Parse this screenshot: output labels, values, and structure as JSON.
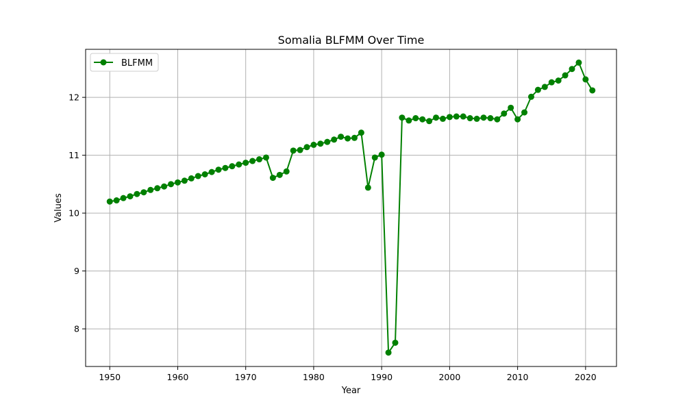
{
  "chart_data": {
    "type": "line",
    "title": "Somalia BLFMM Over Time",
    "xlabel": "Year",
    "ylabel": "Values",
    "xlim": [
      1946.45,
      2024.55
    ],
    "ylim": [
      7.35,
      12.83
    ],
    "xticks": [
      1950,
      1960,
      1970,
      1980,
      1990,
      2000,
      2010,
      2020
    ],
    "yticks": [
      8,
      9,
      10,
      11,
      12
    ],
    "grid": true,
    "legend_position": "upper-left",
    "series": [
      {
        "name": "BLFMM",
        "color": "#008000",
        "marker": "circle",
        "x": [
          1950,
          1951,
          1952,
          1953,
          1954,
          1955,
          1956,
          1957,
          1958,
          1959,
          1960,
          1961,
          1962,
          1963,
          1964,
          1965,
          1966,
          1967,
          1968,
          1969,
          1970,
          1971,
          1972,
          1973,
          1974,
          1975,
          1976,
          1977,
          1978,
          1979,
          1980,
          1981,
          1982,
          1983,
          1984,
          1985,
          1986,
          1987,
          1988,
          1989,
          1990,
          1991,
          1992,
          1993,
          1994,
          1995,
          1996,
          1997,
          1998,
          1999,
          2000,
          2001,
          2002,
          2003,
          2004,
          2005,
          2006,
          2007,
          2008,
          2009,
          2010,
          2011,
          2012,
          2013,
          2014,
          2015,
          2016,
          2017,
          2018,
          2019,
          2020,
          2021
        ],
        "y": [
          10.2,
          10.22,
          10.26,
          10.29,
          10.33,
          10.36,
          10.4,
          10.43,
          10.46,
          10.5,
          10.53,
          10.56,
          10.6,
          10.64,
          10.67,
          10.71,
          10.75,
          10.78,
          10.81,
          10.84,
          10.87,
          10.9,
          10.93,
          10.96,
          10.61,
          10.66,
          10.72,
          11.08,
          11.09,
          11.14,
          11.18,
          11.2,
          11.23,
          11.27,
          11.32,
          11.29,
          11.3,
          11.39,
          10.44,
          10.96,
          11.01,
          7.59,
          7.76,
          11.65,
          11.6,
          11.64,
          11.62,
          11.59,
          11.65,
          11.63,
          11.66,
          11.67,
          11.67,
          11.64,
          11.63,
          11.65,
          11.64,
          11.62,
          11.72,
          11.82,
          11.62,
          11.74,
          12.01,
          12.13,
          12.18,
          12.26,
          12.29,
          12.38,
          12.49,
          12.6,
          12.31,
          12.12
        ]
      }
    ]
  }
}
